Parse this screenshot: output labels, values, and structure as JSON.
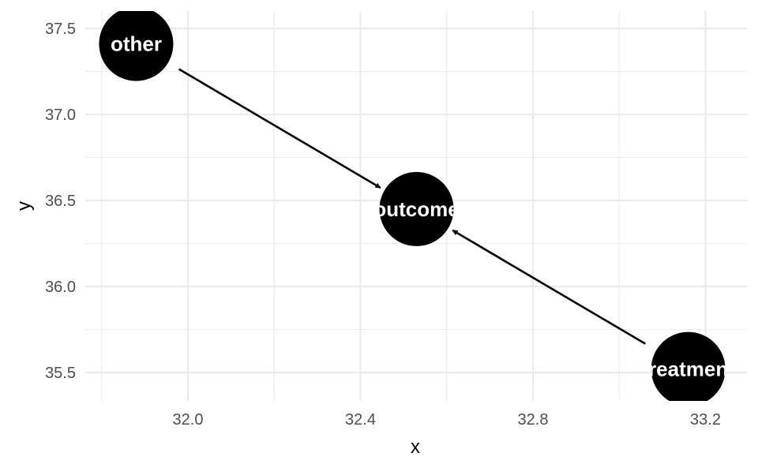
{
  "chart_data": {
    "type": "scatter",
    "xlabel": "x",
    "ylabel": "y",
    "xlim": [
      31.8,
      33.3
    ],
    "ylim": [
      35.35,
      37.6
    ],
    "x_ticks": [
      32.0,
      32.4,
      32.8,
      33.2
    ],
    "x_tick_labels": [
      "32.0",
      "32.4",
      "32.8",
      "33.2"
    ],
    "y_ticks": [
      35.5,
      36.0,
      36.5,
      37.0,
      37.5
    ],
    "y_tick_labels": [
      "35.5",
      "36.0",
      "36.5",
      "37.0",
      "37.5"
    ],
    "grid": true,
    "nodes": [
      {
        "name": "other",
        "x": 31.88,
        "y": 37.41
      },
      {
        "name": "outcome",
        "x": 32.53,
        "y": 36.45
      },
      {
        "name": "treatment",
        "x": 33.16,
        "y": 35.52
      }
    ],
    "edges": [
      {
        "from": "other",
        "to": "outcome"
      },
      {
        "from": "treatment",
        "to": "outcome"
      }
    ],
    "colors": {
      "node_fill": "#000000",
      "node_text": "#ffffff",
      "edge": "#000000",
      "grid": "#ebebeb",
      "background": "#ffffff"
    }
  }
}
